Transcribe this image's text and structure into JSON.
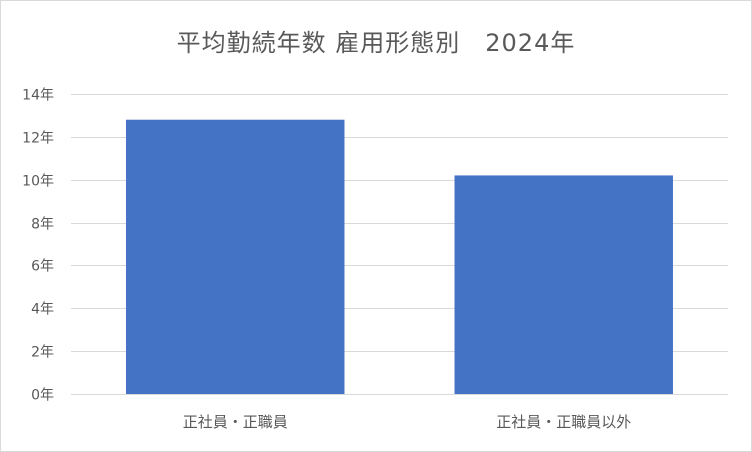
{
  "chart_data": {
    "type": "bar",
    "title": "平均勤続年数 雇用形態別　2024年",
    "categories": [
      "正社員・正職員",
      "正社員・正職員以外"
    ],
    "values": [
      12.8,
      10.2
    ],
    "ylim": [
      0,
      14
    ],
    "ytick_step": 2,
    "ytick_suffix": "年",
    "xlabel": "",
    "ylabel": "",
    "grid": true,
    "legend": "none",
    "bar_color": "#4472c4",
    "grid_color": "#d9d9d9",
    "text_color": "#595959"
  }
}
